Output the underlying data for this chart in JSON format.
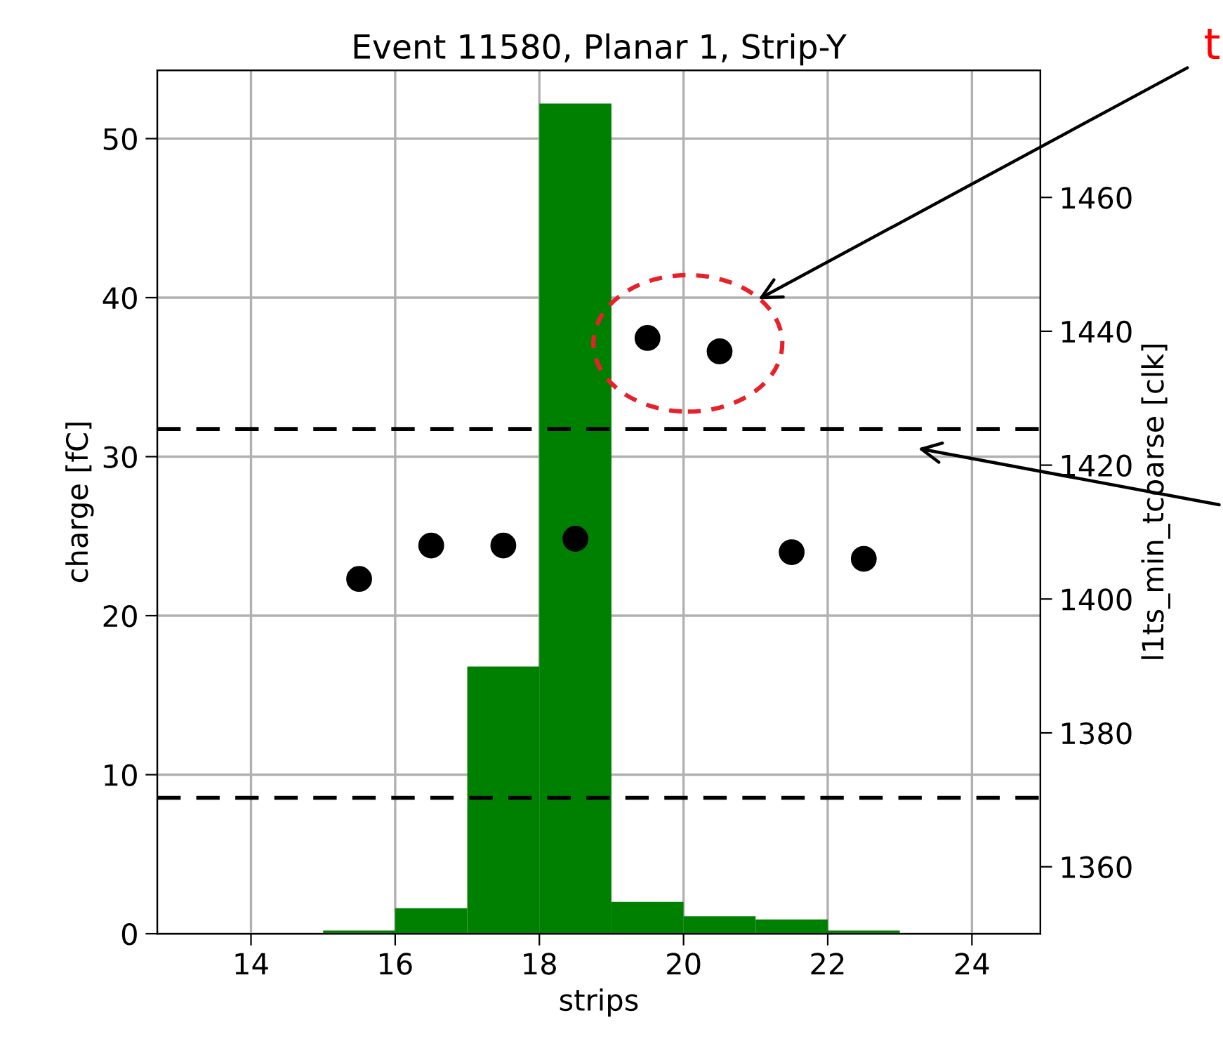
{
  "chart_data": {
    "type": "histogram",
    "title": "Event 11580, Planar 1, Strip-Y",
    "xlabel": "strips",
    "ylabel": "charge [fC]",
    "y2label": "l1ts_min_tcoarse [clk]",
    "bins": [
      13,
      14,
      15,
      16,
      17,
      18,
      19,
      20,
      21,
      22,
      23,
      24,
      25
    ],
    "values": [
      0,
      0,
      0.2,
      1.6,
      16.8,
      52.2,
      2.0,
      1.1,
      0.9,
      0.2,
      0,
      0
    ],
    "color": "#008000",
    "series": [
      {
        "type": "scatter",
        "axis": "y2",
        "color": "#000000",
        "marker": "circle",
        "x": [
          15.5,
          16.5,
          17.5,
          18.5,
          19.5,
          20.5,
          21.5,
          22.5
        ],
        "values": [
          1403,
          1408,
          1408,
          1409,
          1439,
          1437,
          1407,
          1406
        ]
      }
    ],
    "xlim": [
      12.7,
      24.95
    ],
    "xticks": [
      14,
      16,
      18,
      20,
      22,
      24
    ],
    "ylim": [
      0,
      54.3
    ],
    "yticks": [
      0,
      10,
      20,
      30,
      40,
      50
    ],
    "y2lim": [
      1350,
      1479
    ],
    "y2ticks": [
      1360,
      1380,
      1400,
      1420,
      1440,
      1460
    ],
    "ref_lines": [
      {
        "axis": "y2",
        "value": 1425.4,
        "color": "#000000",
        "line_style": "dashed"
      },
      {
        "axis": "y2",
        "value": 1370.3,
        "color": "#000000",
        "line_style": "dashed"
      }
    ],
    "annotations": [
      "t"
    ],
    "grid": true
  }
}
